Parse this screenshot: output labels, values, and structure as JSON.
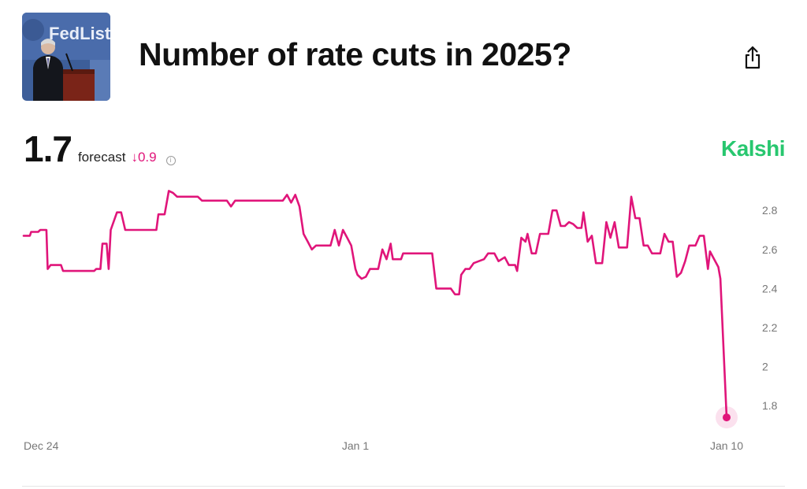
{
  "header": {
    "title": "Number of rate cuts in 2025?",
    "thumbnail_text": "FedListen"
  },
  "forecast": {
    "value": "1.7",
    "label": "forecast",
    "change": "↓0.9",
    "info_icon": "info-icon"
  },
  "brand": {
    "name": "Kalshi"
  },
  "colors": {
    "line": "#e0157a",
    "brand": "#28c76f",
    "axis_text": "#777777"
  },
  "chart_data": {
    "type": "line",
    "title": "Number of rate cuts in 2025?",
    "ylim": [
      1.7,
      2.95
    ],
    "y_ticks": [
      {
        "value": 2.8,
        "label": "2.8"
      },
      {
        "value": 2.6,
        "label": "2.6"
      },
      {
        "value": 2.4,
        "label": "2.4"
      },
      {
        "value": 2.2,
        "label": "2.2"
      },
      {
        "value": 2.0,
        "label": "2"
      },
      {
        "value": 1.8,
        "label": "1.8"
      }
    ],
    "xlim": [
      0,
      16.95
    ],
    "x_ticks": [
      {
        "value": 0,
        "label": "Dec 24"
      },
      {
        "value": 8,
        "label": "Jan 1"
      },
      {
        "value": 16.95,
        "label": "Jan 10"
      }
    ],
    "xlabel": "",
    "ylabel": "",
    "grid": false,
    "series": [
      {
        "name": "forecast",
        "points": [
          [
            0.0,
            2.67
          ],
          [
            0.15,
            2.67
          ],
          [
            0.18,
            2.69
          ],
          [
            0.35,
            2.69
          ],
          [
            0.4,
            2.7
          ],
          [
            0.55,
            2.7
          ],
          [
            0.58,
            2.5
          ],
          [
            0.65,
            2.52
          ],
          [
            0.9,
            2.52
          ],
          [
            0.95,
            2.49
          ],
          [
            1.7,
            2.49
          ],
          [
            1.75,
            2.5
          ],
          [
            1.85,
            2.5
          ],
          [
            1.9,
            2.63
          ],
          [
            2.0,
            2.63
          ],
          [
            2.05,
            2.5
          ],
          [
            2.1,
            2.7
          ],
          [
            2.25,
            2.79
          ],
          [
            2.35,
            2.79
          ],
          [
            2.45,
            2.7
          ],
          [
            3.2,
            2.7
          ],
          [
            3.25,
            2.78
          ],
          [
            3.4,
            2.78
          ],
          [
            3.5,
            2.9
          ],
          [
            3.6,
            2.89
          ],
          [
            3.7,
            2.87
          ],
          [
            4.2,
            2.87
          ],
          [
            4.3,
            2.85
          ],
          [
            4.9,
            2.85
          ],
          [
            5.0,
            2.82
          ],
          [
            5.1,
            2.85
          ],
          [
            6.25,
            2.85
          ],
          [
            6.35,
            2.88
          ],
          [
            6.45,
            2.84
          ],
          [
            6.55,
            2.88
          ],
          [
            6.65,
            2.82
          ],
          [
            6.75,
            2.68
          ],
          [
            6.85,
            2.64
          ],
          [
            6.95,
            2.6
          ],
          [
            7.05,
            2.62
          ],
          [
            7.4,
            2.62
          ],
          [
            7.5,
            2.7
          ],
          [
            7.6,
            2.62
          ],
          [
            7.7,
            2.7
          ],
          [
            7.8,
            2.66
          ],
          [
            7.9,
            2.62
          ],
          [
            8.0,
            2.5
          ],
          [
            8.05,
            2.47
          ],
          [
            8.15,
            2.45
          ],
          [
            8.25,
            2.46
          ],
          [
            8.35,
            2.5
          ],
          [
            8.55,
            2.5
          ],
          [
            8.65,
            2.6
          ],
          [
            8.75,
            2.55
          ],
          [
            8.85,
            2.63
          ],
          [
            8.9,
            2.55
          ],
          [
            9.1,
            2.55
          ],
          [
            9.15,
            2.58
          ],
          [
            9.85,
            2.58
          ],
          [
            9.95,
            2.4
          ],
          [
            10.3,
            2.4
          ],
          [
            10.4,
            2.37
          ],
          [
            10.5,
            2.37
          ],
          [
            10.55,
            2.47
          ],
          [
            10.65,
            2.5
          ],
          [
            10.75,
            2.5
          ],
          [
            10.85,
            2.53
          ],
          [
            11.1,
            2.55
          ],
          [
            11.2,
            2.58
          ],
          [
            11.35,
            2.58
          ],
          [
            11.45,
            2.54
          ],
          [
            11.6,
            2.56
          ],
          [
            11.7,
            2.52
          ],
          [
            11.85,
            2.52
          ],
          [
            11.9,
            2.49
          ],
          [
            12.0,
            2.66
          ],
          [
            12.1,
            2.64
          ],
          [
            12.15,
            2.68
          ],
          [
            12.25,
            2.58
          ],
          [
            12.35,
            2.58
          ],
          [
            12.45,
            2.68
          ],
          [
            12.65,
            2.68
          ],
          [
            12.75,
            2.8
          ],
          [
            12.85,
            2.8
          ],
          [
            12.95,
            2.72
          ],
          [
            13.05,
            2.72
          ],
          [
            13.15,
            2.74
          ],
          [
            13.25,
            2.73
          ],
          [
            13.35,
            2.71
          ],
          [
            13.45,
            2.71
          ],
          [
            13.5,
            2.79
          ],
          [
            13.6,
            2.64
          ],
          [
            13.7,
            2.67
          ],
          [
            13.8,
            2.53
          ],
          [
            13.95,
            2.53
          ],
          [
            14.05,
            2.74
          ],
          [
            14.15,
            2.66
          ],
          [
            14.25,
            2.74
          ],
          [
            14.35,
            2.61
          ],
          [
            14.55,
            2.61
          ],
          [
            14.65,
            2.87
          ],
          [
            14.75,
            2.76
          ],
          [
            14.85,
            2.76
          ],
          [
            14.95,
            2.62
          ],
          [
            15.05,
            2.62
          ],
          [
            15.15,
            2.58
          ],
          [
            15.35,
            2.58
          ],
          [
            15.45,
            2.68
          ],
          [
            15.55,
            2.64
          ],
          [
            15.65,
            2.64
          ],
          [
            15.75,
            2.46
          ],
          [
            15.85,
            2.48
          ],
          [
            15.95,
            2.54
          ],
          [
            16.05,
            2.62
          ],
          [
            16.2,
            2.62
          ],
          [
            16.3,
            2.67
          ],
          [
            16.4,
            2.67
          ],
          [
            16.5,
            2.5
          ],
          [
            16.55,
            2.59
          ],
          [
            16.65,
            2.55
          ],
          [
            16.75,
            2.51
          ],
          [
            16.8,
            2.45
          ],
          [
            16.95,
            1.74
          ]
        ]
      }
    ],
    "current_point": {
      "x": 16.95,
      "y": 1.74
    }
  }
}
